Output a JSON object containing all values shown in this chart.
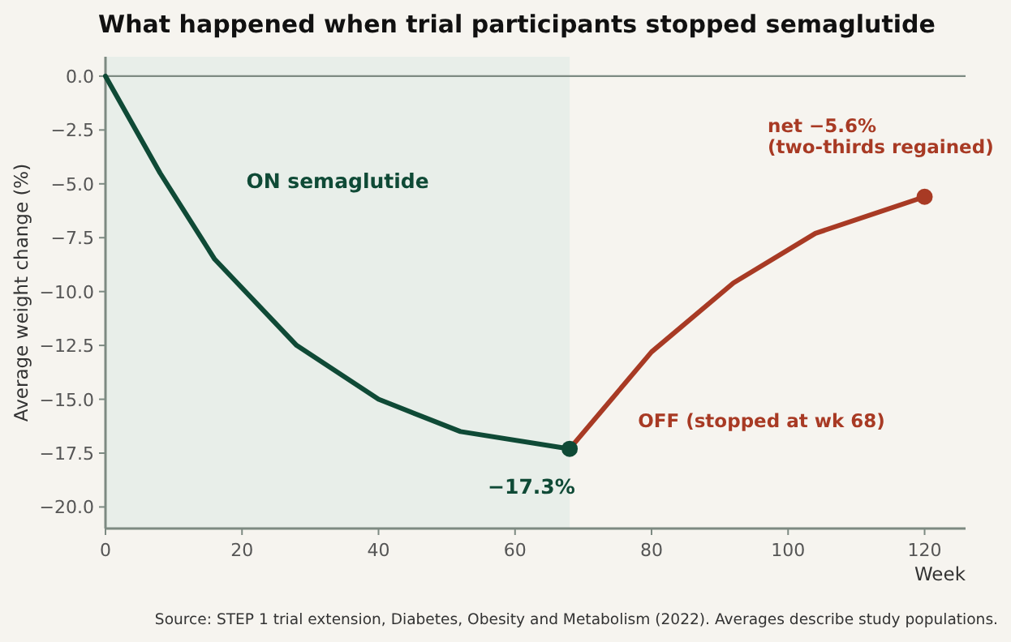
{
  "chart_data": {
    "type": "line",
    "title": "What happened when trial participants stopped semaglutide",
    "xlabel": "Week",
    "ylabel": "Average weight change (%)",
    "series": [
      {
        "color": "#0f4a36",
        "x": [
          0,
          8,
          16,
          28,
          40,
          52,
          68
        ],
        "values": [
          0,
          -4.5,
          -8.5,
          -12.5,
          -15,
          -16.5,
          -17.3
        ]
      },
      {
        "color": "#a83a24",
        "x": [
          68,
          80,
          92,
          104,
          120
        ],
        "values": [
          -17.3,
          -12.8,
          -9.6,
          -7.3,
          -5.6
        ]
      },
      {
        "type": "scatter",
        "marker": "circle",
        "x": [
          68,
          120
        ],
        "values": [
          -17.3,
          -5.6
        ],
        "colors": [
          "#0f4a36",
          "#a83a24"
        ]
      }
    ],
    "xlim": [
      0,
      126
    ],
    "xticks": [
      0,
      20,
      40,
      60,
      80,
      100,
      120
    ],
    "ylim": [
      -21,
      0.9
    ],
    "yticks": [
      {
        "value": 0,
        "label": "0.0"
      },
      {
        "value": -2.5,
        "label": "−2.5"
      },
      {
        "value": -5,
        "label": "−5.0"
      },
      {
        "value": -7.5,
        "label": "−7.5"
      },
      {
        "value": -10,
        "label": "−10.0"
      },
      {
        "value": -12.5,
        "label": "−12.5"
      },
      {
        "value": -15,
        "label": "−15.0"
      },
      {
        "value": -17.5,
        "label": "−17.5"
      },
      {
        "value": -20,
        "label": "−20.0"
      }
    ],
    "ref_lines": [
      {
        "axis": "y",
        "value": 0,
        "color": "#7d8a82"
      }
    ],
    "bands": [
      {
        "axis": "x",
        "from": 0,
        "to": 68,
        "label": "ON semaglutide",
        "color": "#e8eee9"
      }
    ],
    "annotations": [
      "−17.3%",
      "net −5.6%\n(two-thirds regained)",
      "OFF (stopped at wk 68)",
      "Source: STEP 1 trial extension, Diabetes, Obesity and Metabolism (2022). Averages describe study populations."
    ],
    "grid": false,
    "marker": "none",
    "line_style": "solid"
  }
}
